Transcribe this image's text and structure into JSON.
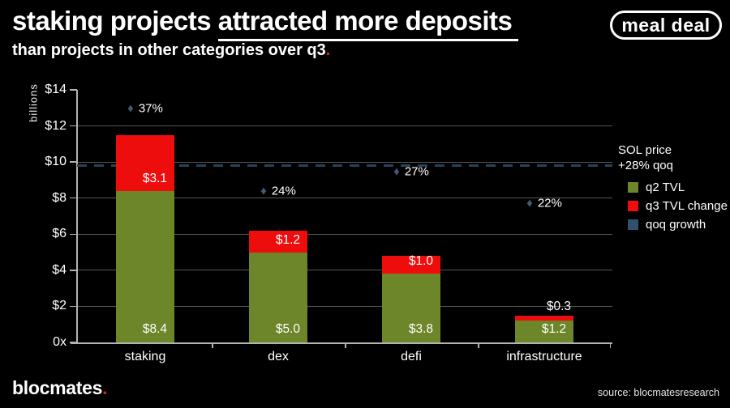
{
  "header": {
    "title_plain": "staking projects ",
    "title_underlined": "attracted more deposits",
    "subtitle": "than projects in other categories over q3",
    "subtitle_period": ".",
    "badge": "meal deal"
  },
  "footer": {
    "brand": "blocmates",
    "brand_period": ".",
    "source": "source: blocmatesresearch"
  },
  "chart_data": {
    "type": "bar",
    "stacked": true,
    "title": "staking projects attracted more deposits than projects in other categories over q3",
    "ylabel": "billions",
    "categories": [
      "staking",
      "dex",
      "defi",
      "infrastructure"
    ],
    "series": [
      {
        "name": "q2 TVL",
        "color": "#6d8629",
        "values": [
          8.4,
          5.0,
          3.8,
          1.2
        ]
      },
      {
        "name": "q3 TVL change",
        "color": "#ee0d0d",
        "values": [
          3.1,
          1.2,
          1.0,
          0.3
        ]
      }
    ],
    "growth_series": {
      "name": "qoq growth",
      "color": "#3e5a74",
      "marker": "diamond",
      "values_pct": [
        37,
        24,
        27,
        22
      ]
    },
    "reference_line": {
      "label_line1": "SOL price",
      "label_line2": "+28% qoq",
      "value_pct": 28,
      "color": "#2b4156",
      "style": "dashed"
    },
    "y_ticks": [
      "$14",
      "$12",
      "$10",
      "$8",
      "$6",
      "$4",
      "$2",
      "0x"
    ],
    "y_tick_values": [
      14,
      12,
      10,
      8,
      6,
      4,
      2,
      0
    ],
    "ylim": [
      0,
      14
    ],
    "value_prefix": "$",
    "pct_to_billions": 0.35,
    "grid": true,
    "legend_position": "right",
    "legend": [
      {
        "label": "q2 TVL",
        "color": "#6d8629"
      },
      {
        "label": "q3 TVL change",
        "color": "#ee0d0d"
      },
      {
        "label": "qoq growth",
        "color": "#31506b"
      }
    ]
  }
}
